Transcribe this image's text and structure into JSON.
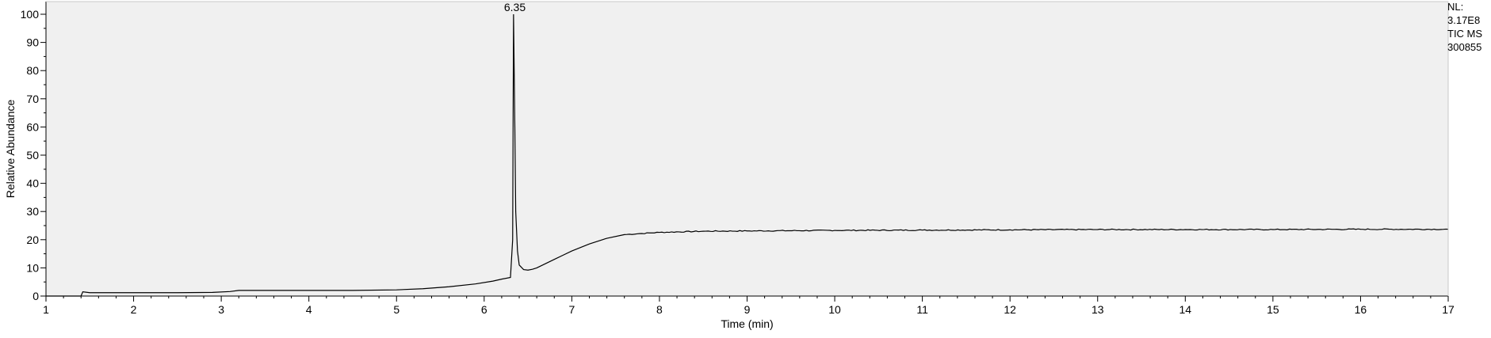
{
  "chart_data": {
    "type": "line",
    "title": "",
    "xlabel": "Time (min)",
    "ylabel": "Relative Abundance",
    "xlim": [
      1,
      17
    ],
    "ylim": [
      0,
      100
    ],
    "x_ticks": [
      1,
      2,
      3,
      4,
      5,
      6,
      7,
      8,
      9,
      10,
      11,
      12,
      13,
      14,
      15,
      16,
      17
    ],
    "y_ticks": [
      0,
      10,
      20,
      30,
      40,
      50,
      60,
      70,
      80,
      90,
      100
    ],
    "grid": false,
    "plot_background": "#f0f0f0",
    "line_color": "#000000",
    "series": [
      {
        "x": [
          1.0,
          1.4,
          1.42,
          1.5,
          2.0,
          2.5,
          2.9,
          3.1,
          3.2,
          3.5,
          4.0,
          4.5,
          5.0,
          5.3,
          5.6,
          5.9,
          6.1,
          6.2,
          6.3,
          6.325,
          6.335,
          6.35,
          6.36,
          6.38,
          6.4,
          6.45,
          6.5,
          6.55,
          6.6,
          6.7,
          6.8,
          6.9,
          7.0,
          7.2,
          7.4,
          7.6,
          7.8,
          8.0,
          8.5,
          9.0,
          10.0,
          11.0,
          12.0,
          13.0,
          14.0,
          15.0,
          16.0,
          17.0
        ],
        "y": [
          0.0,
          0.0,
          1.5,
          1.2,
          1.2,
          1.2,
          1.3,
          1.6,
          2.0,
          2.0,
          2.0,
          2.0,
          2.2,
          2.6,
          3.3,
          4.3,
          5.3,
          6.0,
          6.6,
          20.0,
          100.0,
          60.0,
          30.0,
          16.0,
          11.0,
          9.4,
          9.2,
          9.5,
          10.0,
          11.5,
          13.0,
          14.5,
          16.0,
          18.5,
          20.5,
          21.8,
          22.2,
          22.6,
          23.0,
          23.1,
          23.3,
          23.4,
          23.5,
          23.6,
          23.6,
          23.6,
          23.7,
          23.7
        ]
      }
    ],
    "annotations": [
      {
        "x": 6.35,
        "y": 100,
        "text": "6.35"
      }
    ]
  },
  "side_info": [
    "NL:",
    "3.17E8",
    "TIC  MS",
    "300855"
  ]
}
